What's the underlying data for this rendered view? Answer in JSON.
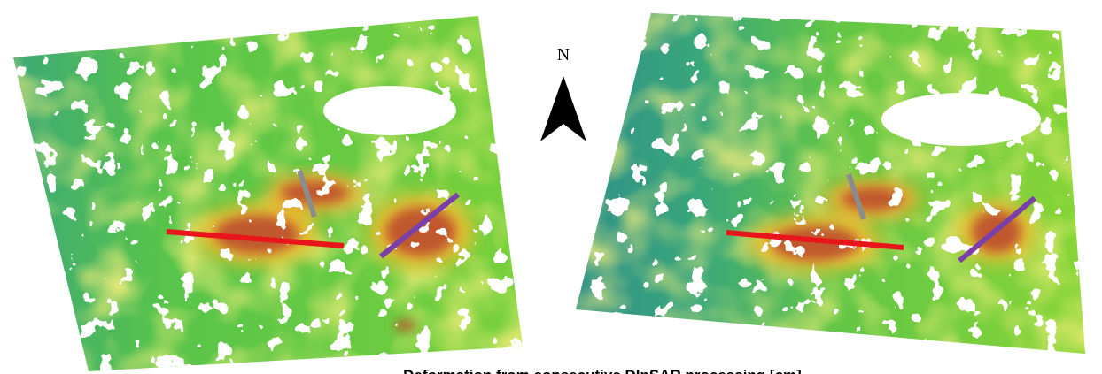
{
  "north_label": "N",
  "caption": "Deformation from consecutive DInSAR processing [cm]"
}
